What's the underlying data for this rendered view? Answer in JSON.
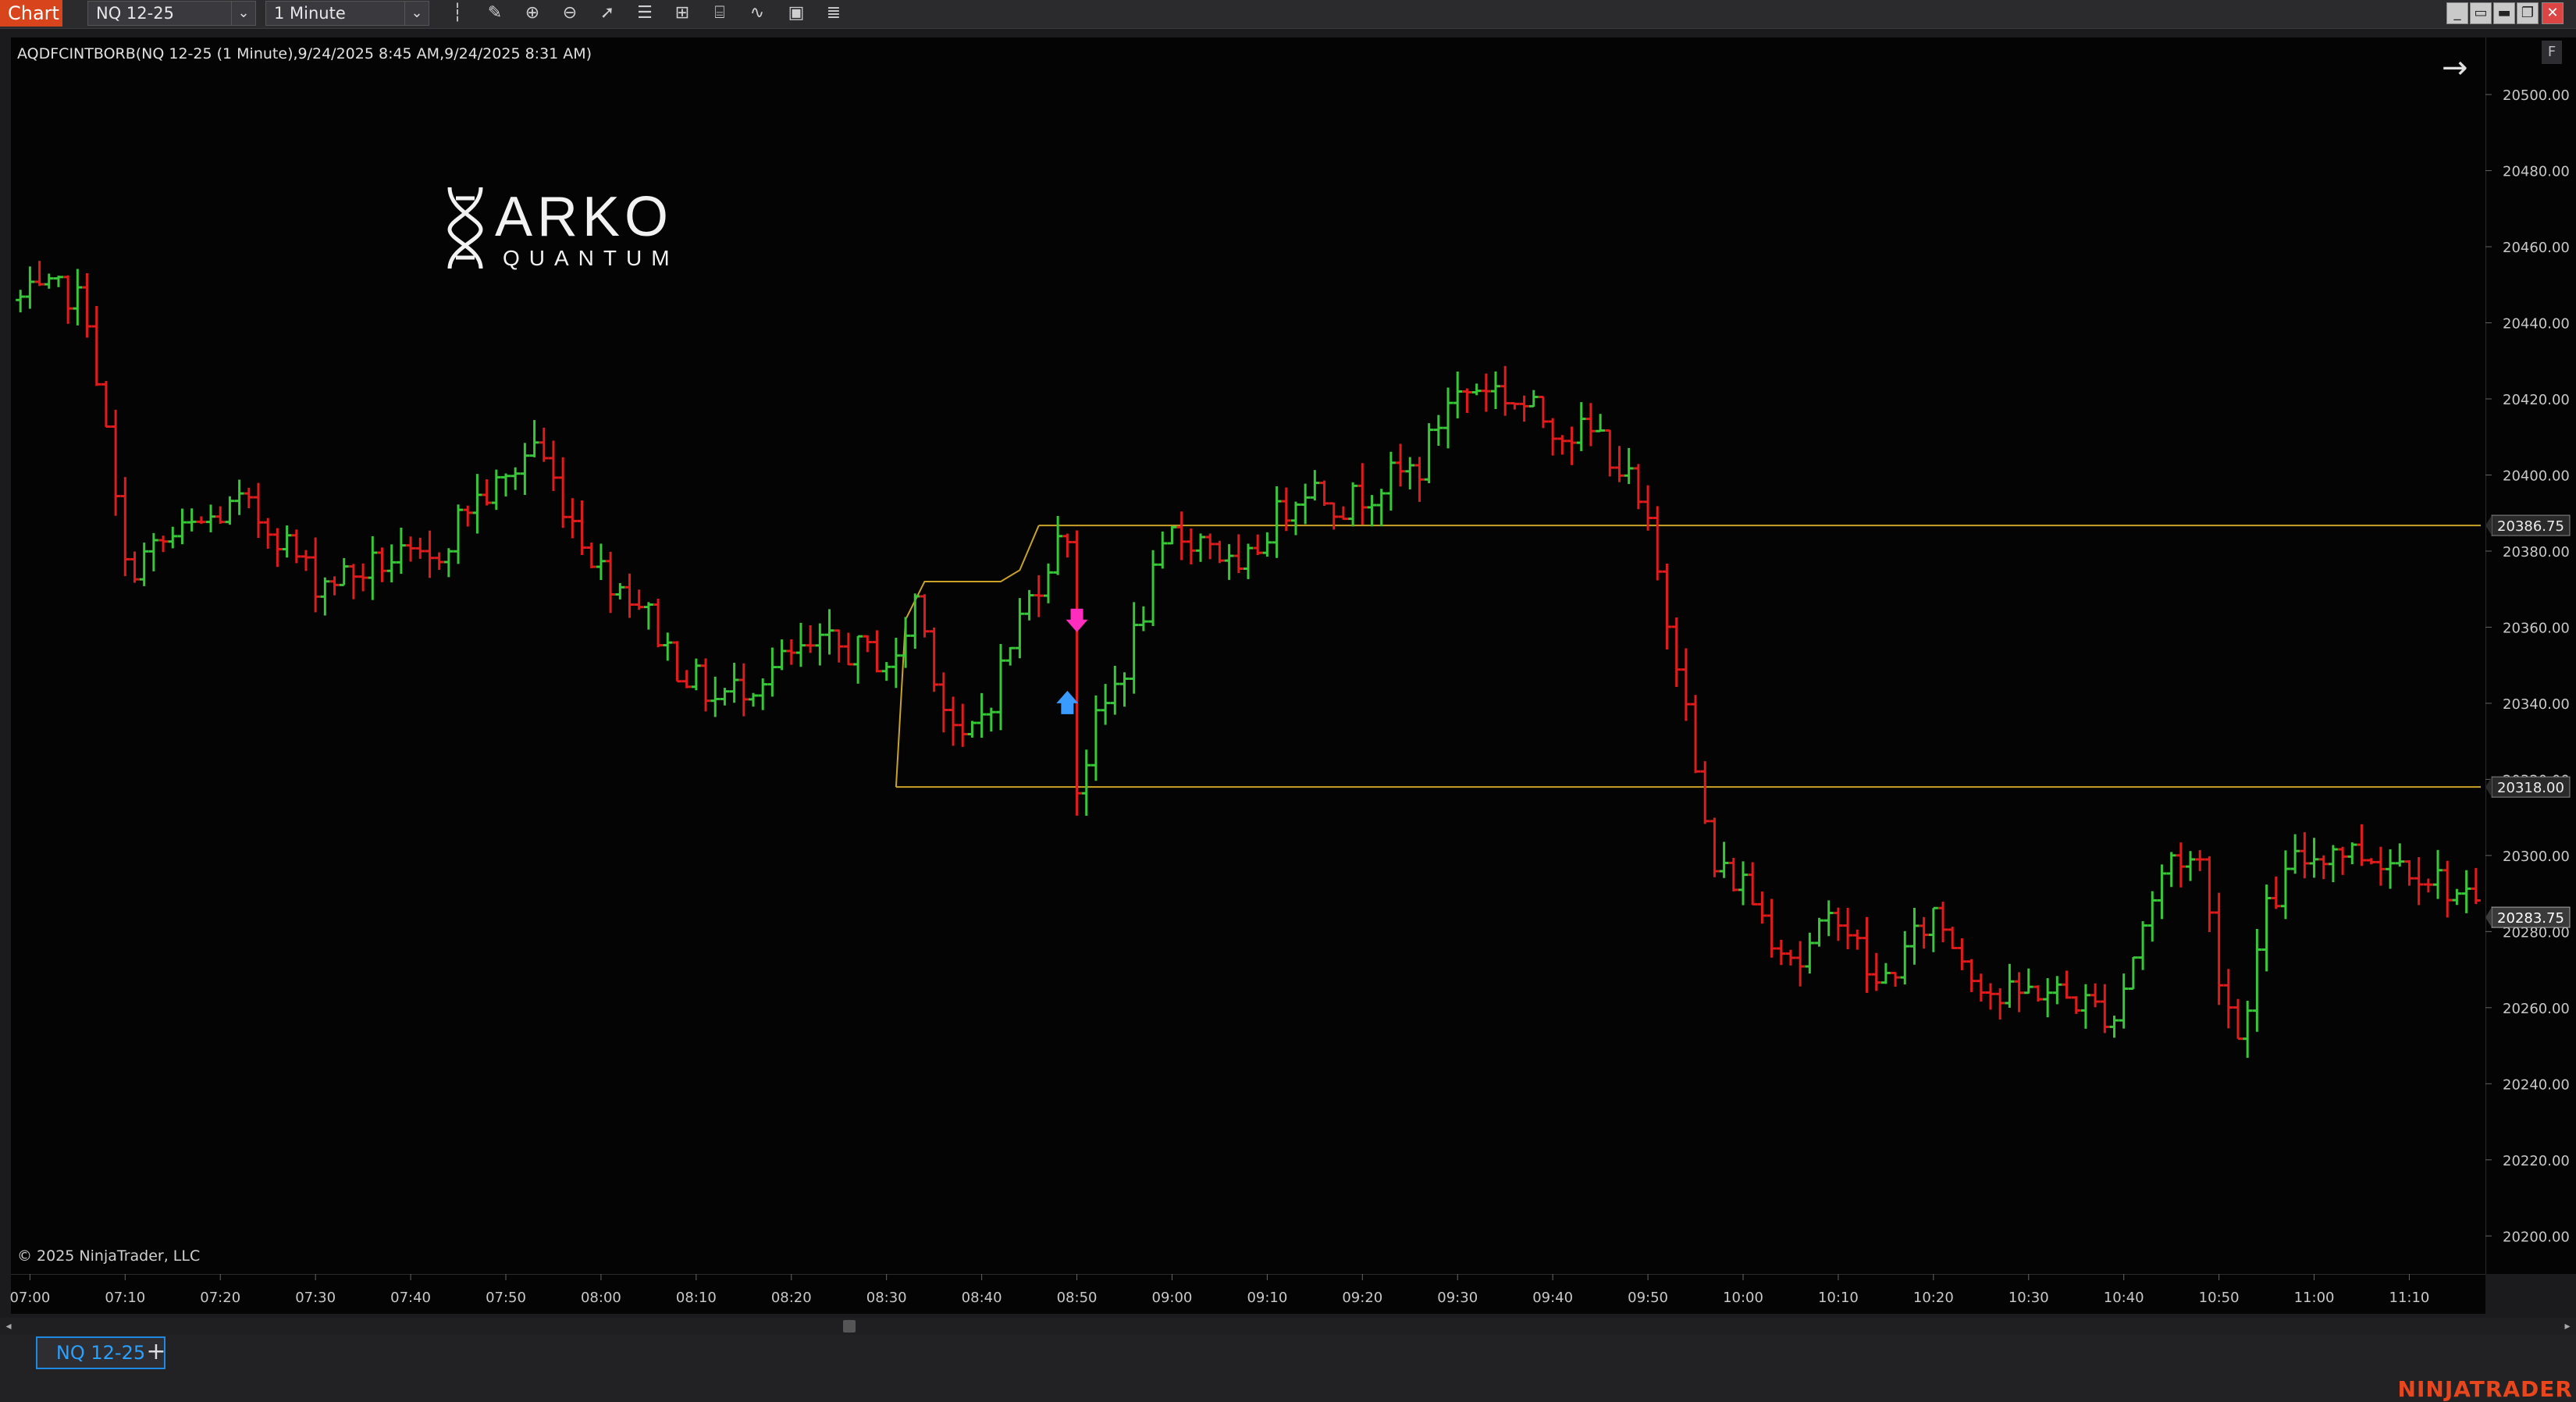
{
  "toolbar": {
    "chart_tab": "Chart",
    "instrument": "NQ 12-25",
    "interval": "1 Minute",
    "icons": [
      "bar-type-icon",
      "pencil-icon",
      "zoom-in-icon",
      "zoom-out-icon",
      "pointer-icon",
      "properties-icon",
      "templates-icon",
      "strategy-icon",
      "indicators-icon",
      "data-box-icon",
      "list-icon"
    ]
  },
  "window_buttons": [
    "minimize",
    "tile",
    "maximize",
    "restore",
    "close"
  ],
  "chart": {
    "indicator_label": "AQDFCINTBORB(NQ 12-25 (1 Minute),9/24/2025 8:45 AM,9/24/2025 8:31 AM)",
    "copyright": "© 2025 NinjaTrader, LLC",
    "logo": {
      "word": "ARKO",
      "sub": "QUANTUM"
    },
    "colors": {
      "up": "#38c738",
      "down": "#e01b1b",
      "level": "#c9a227",
      "arrow_down": "#ff2dbd",
      "arrow_up": "#3a9bff"
    }
  },
  "chart_data": {
    "type": "candlestick",
    "title": "",
    "x_label": "",
    "y_label": "",
    "x_range": [
      "06:58",
      "11:18"
    ],
    "y_range": [
      20190,
      20515
    ],
    "y_ticks": [
      20200,
      20220,
      20240,
      20260,
      20280,
      20300,
      20320,
      20340,
      20360,
      20380,
      20400,
      20420,
      20440,
      20460,
      20480,
      20500
    ],
    "x_ticks": [
      "07:00",
      "07:10",
      "07:20",
      "07:30",
      "07:40",
      "07:50",
      "08:00",
      "08:10",
      "08:20",
      "08:30",
      "08:40",
      "08:50",
      "09:00",
      "09:10",
      "09:20",
      "09:30",
      "09:40",
      "09:50",
      "10:00",
      "10:10",
      "10:20",
      "10:30",
      "10:40",
      "10:50",
      "11:00",
      "11:10"
    ],
    "price_path": [
      [
        "06:59",
        20446
      ],
      [
        "07:04",
        20448
      ],
      [
        "07:06",
        20443
      ],
      [
        "07:08",
        20410
      ],
      [
        "07:10",
        20375
      ],
      [
        "07:14",
        20382
      ],
      [
        "07:18",
        20387
      ],
      [
        "07:22",
        20392
      ],
      [
        "07:26",
        20385
      ],
      [
        "07:30",
        20372
      ],
      [
        "07:34",
        20374
      ],
      [
        "07:38",
        20378
      ],
      [
        "07:42",
        20376
      ],
      [
        "07:46",
        20392
      ],
      [
        "07:50",
        20398
      ],
      [
        "07:53",
        20409
      ],
      [
        "07:56",
        20393
      ],
      [
        "08:00",
        20375
      ],
      [
        "08:04",
        20367
      ],
      [
        "08:08",
        20350
      ],
      [
        "08:12",
        20341
      ],
      [
        "08:16",
        20346
      ],
      [
        "08:20",
        20352
      ],
      [
        "08:24",
        20355
      ],
      [
        "08:28",
        20353
      ],
      [
        "08:31",
        20350
      ],
      [
        "08:33",
        20368
      ],
      [
        "08:36",
        20340
      ],
      [
        "08:38",
        20328
      ],
      [
        "08:41",
        20342
      ],
      [
        "08:44",
        20362
      ],
      [
        "08:47",
        20378
      ],
      [
        "08:49",
        20385
      ],
      [
        "08:50",
        20318
      ],
      [
        "08:52",
        20334
      ],
      [
        "08:55",
        20350
      ],
      [
        "08:58",
        20372
      ],
      [
        "09:00",
        20384
      ],
      [
        "09:04",
        20383
      ],
      [
        "09:07",
        20372
      ],
      [
        "09:10",
        20386
      ],
      [
        "09:14",
        20398
      ],
      [
        "09:18",
        20392
      ],
      [
        "09:22",
        20398
      ],
      [
        "09:26",
        20402
      ],
      [
        "09:29",
        20420
      ],
      [
        "09:33",
        20424
      ],
      [
        "09:37",
        20418
      ],
      [
        "09:41",
        20412
      ],
      [
        "09:45",
        20410
      ],
      [
        "09:48",
        20398
      ],
      [
        "09:50",
        20385
      ],
      [
        "09:52",
        20362
      ],
      [
        "09:54",
        20344
      ],
      [
        "09:55",
        20320
      ],
      [
        "09:57",
        20296
      ],
      [
        "10:00",
        20293
      ],
      [
        "10:03",
        20280
      ],
      [
        "10:06",
        20272
      ],
      [
        "10:10",
        20286
      ],
      [
        "10:14",
        20265
      ],
      [
        "10:17",
        20274
      ],
      [
        "10:20",
        20285
      ],
      [
        "10:24",
        20270
      ],
      [
        "10:27",
        20262
      ],
      [
        "10:31",
        20265
      ],
      [
        "10:35",
        20262
      ],
      [
        "10:39",
        20258
      ],
      [
        "10:42",
        20282
      ],
      [
        "10:45",
        20300
      ],
      [
        "10:48",
        20298
      ],
      [
        "10:50",
        20270
      ],
      [
        "10:52",
        20252
      ],
      [
        "10:55",
        20285
      ],
      [
        "10:58",
        20298
      ],
      [
        "11:02",
        20302
      ],
      [
        "11:06",
        20300
      ],
      [
        "11:10",
        20298
      ],
      [
        "11:14",
        20292
      ],
      [
        "11:17",
        20285
      ]
    ],
    "levels": [
      {
        "price": 20386.75,
        "label": "20386.75",
        "from": "08:46"
      },
      {
        "price": 20318.0,
        "label": "20318.00",
        "from": "08:31"
      }
    ],
    "last_price": {
      "price": 20283.75,
      "label": "20283.75"
    },
    "range_build_line": [
      [
        "08:31",
        20318
      ],
      [
        "08:32",
        20362
      ],
      [
        "08:34",
        20372
      ],
      [
        "08:42",
        20372
      ],
      [
        "08:44",
        20375
      ],
      [
        "08:46",
        20386.75
      ]
    ],
    "signals": [
      {
        "type": "sell-arrow",
        "time": "08:50",
        "price": 20362
      },
      {
        "type": "buy-arrow",
        "time": "08:49",
        "price": 20340
      }
    ]
  },
  "bottom": {
    "tab": "NQ 12-25",
    "add": "+",
    "brand": "NINJATRADER"
  }
}
